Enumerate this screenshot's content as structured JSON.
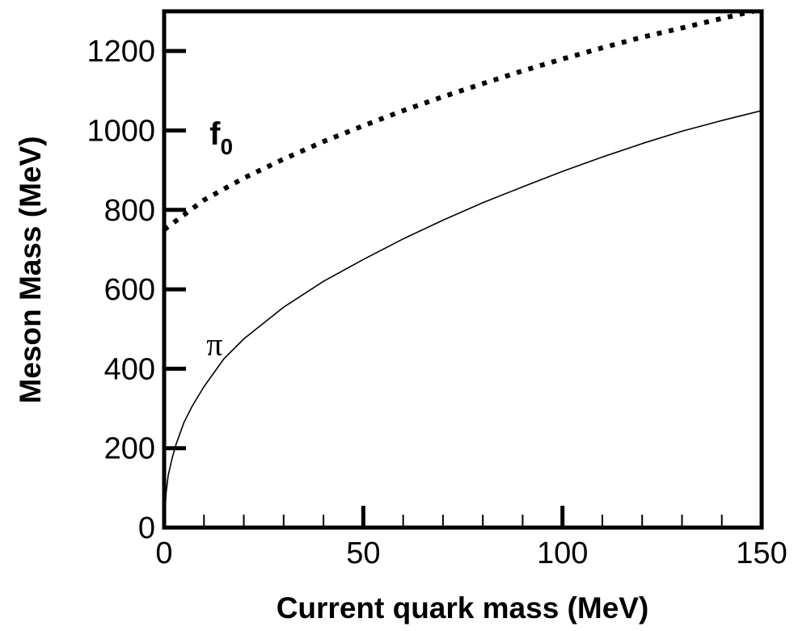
{
  "chart_data": {
    "type": "line",
    "title": "",
    "xlabel": "Current  quark mass (MeV)",
    "ylabel": "Meson Mass (MeV)",
    "xlim": [
      0,
      150
    ],
    "ylim": [
      0,
      1300
    ],
    "x_ticks": [
      0,
      50,
      100,
      150
    ],
    "y_ticks": [
      0,
      200,
      400,
      600,
      800,
      1000,
      1200
    ],
    "x_tick_labels": [
      "0",
      "50",
      "100",
      "150"
    ],
    "y_tick_labels": [
      "0",
      "200",
      "400",
      "600",
      "800",
      "1000",
      "1200"
    ],
    "x_minor_step": 10,
    "grid": false,
    "legend": "none",
    "series": [
      {
        "label": "f",
        "label_sub": "0",
        "style": "dotted",
        "color": "#000000",
        "x": [
          0,
          10,
          20,
          30,
          40,
          50,
          60,
          70,
          80,
          90,
          100,
          110,
          120,
          130,
          140,
          150
        ],
        "y": [
          750,
          825,
          880,
          928,
          972,
          1012,
          1050,
          1085,
          1118,
          1150,
          1180,
          1208,
          1235,
          1258,
          1282,
          1305
        ]
      },
      {
        "label": "π",
        "style": "solid",
        "color": "#000000",
        "x": [
          0,
          0.5,
          1,
          2,
          3,
          5,
          7,
          10,
          15,
          20,
          30,
          40,
          50,
          60,
          70,
          80,
          90,
          100,
          110,
          120,
          130,
          140,
          150
        ],
        "y": [
          0,
          88,
          130,
          175,
          210,
          265,
          305,
          355,
          425,
          475,
          555,
          620,
          675,
          727,
          774,
          818,
          858,
          897,
          933,
          967,
          998,
          1025,
          1050
        ]
      }
    ],
    "annotations": [
      {
        "text": "f",
        "sub": "0",
        "at_x": 12,
        "at_y": 970
      },
      {
        "text": "π",
        "at_x": 10,
        "at_y": 445
      }
    ]
  }
}
